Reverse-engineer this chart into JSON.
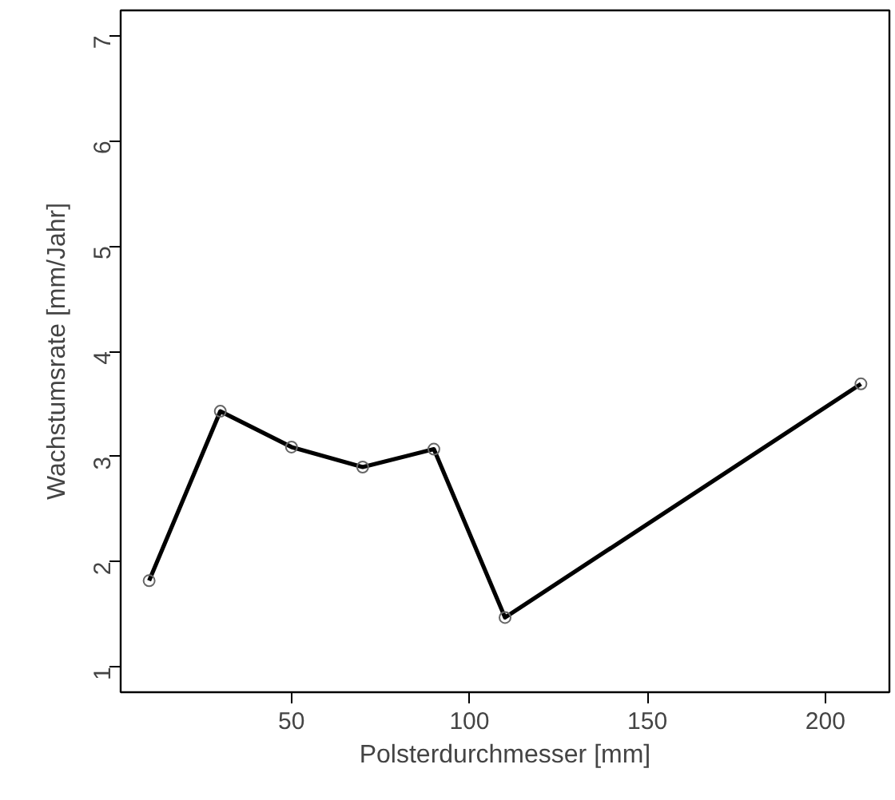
{
  "chart_data": {
    "type": "line",
    "xlabel": "Polsterdurchmesser [mm]",
    "ylabel": "Wachstumsrate [mm/Jahr]",
    "x": [
      10,
      30,
      50,
      70,
      90,
      110,
      210
    ],
    "series": [
      {
        "color": "#000000",
        "values": [
          1.82,
          3.43,
          3.09,
          2.9,
          3.07,
          1.47,
          3.69
        ]
      }
    ],
    "xlim": [
      2,
      218
    ],
    "ylim": [
      0.76,
      7.24
    ],
    "xticks": [
      50,
      100,
      150,
      200
    ],
    "yticks": [
      1,
      2,
      3,
      4,
      5,
      6,
      7
    ],
    "grid": false,
    "marker": "circle",
    "line_style": "solid"
  }
}
